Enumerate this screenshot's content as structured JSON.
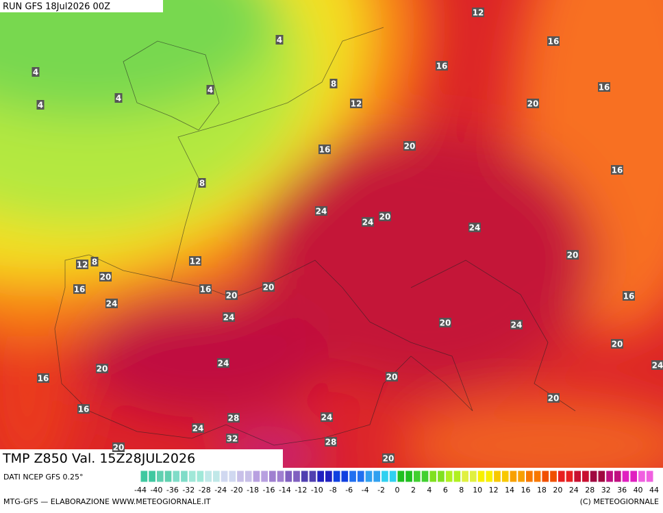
{
  "header": {
    "run": "RUN GFS 18Jul2026 00Z",
    "title": "TMP Z850 Val. 15Z28JUL2026"
  },
  "footer": {
    "source": "DATI NCEP GFS 0.25°",
    "credit": "MTG-GFS — ELABORAZIONE WWW.METEOGIORNALE.IT",
    "copyright": "(C) METEOGIORNALE"
  },
  "colorbar": {
    "labels": [
      -44,
      -40,
      -36,
      -32,
      -28,
      -24,
      -20,
      -18,
      -16,
      -14,
      -12,
      -10,
      -8,
      -6,
      -4,
      -2,
      0,
      2,
      4,
      6,
      8,
      10,
      12,
      14,
      16,
      18,
      20,
      24,
      28,
      32,
      36,
      40,
      44
    ],
    "colors": [
      "#40c8a0",
      "#60d0b0",
      "#80dcc8",
      "#a0e8d8",
      "#c0e8e8",
      "#d0d8f0",
      "#c8c0e8",
      "#b8a0e0",
      "#a080d0",
      "#8060c0",
      "#5040b0",
      "#2020c0",
      "#1040e0",
      "#2070f0",
      "#30a0f0",
      "#30d0f0",
      "#20c020",
      "#40d030",
      "#80e020",
      "#b0f020",
      "#e0f040",
      "#f8f000",
      "#f8c800",
      "#f8a000",
      "#f87800",
      "#f05000",
      "#e82020",
      "#c81030",
      "#a00840",
      "#c01080",
      "#e020c0",
      "#f060e0"
    ]
  },
  "contour_labels": [
    12,
    4,
    16,
    4,
    16,
    8,
    4,
    16,
    4,
    4,
    12,
    20,
    16,
    20,
    16,
    8,
    24,
    24,
    20,
    24,
    20,
    12,
    8,
    12,
    20,
    16,
    16,
    20,
    20,
    16,
    24,
    24,
    20,
    24,
    20,
    24,
    24,
    20,
    16,
    20,
    20,
    16,
    28,
    24,
    24,
    32,
    28,
    20,
    20
  ]
}
